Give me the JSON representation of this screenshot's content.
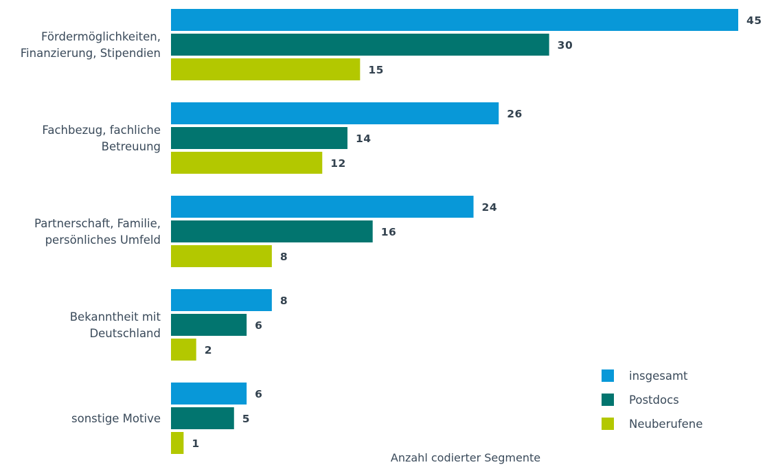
{
  "chart_data": {
    "type": "bar",
    "orientation": "horizontal",
    "categories": [
      [
        "Fördermöglichkeiten,",
        "Finanzierung, Stipendien"
      ],
      [
        "Fachbezug, fachliche",
        "Betreuung"
      ],
      [
        "Partnerschaft, Familie,",
        "persönliches Umfeld"
      ],
      [
        "Bekanntheit mit",
        "Deutschland"
      ],
      [
        "sonstige Motive"
      ]
    ],
    "series": [
      {
        "name": "insgesamt",
        "color": "#0898d8",
        "values": [
          45,
          26,
          24,
          8,
          6
        ]
      },
      {
        "name": "Postdocs",
        "color": "#02756f",
        "values": [
          30,
          14,
          16,
          6,
          5
        ]
      },
      {
        "name": "Neuberufene",
        "color": "#b3c800",
        "values": [
          15,
          12,
          8,
          2,
          1
        ]
      }
    ],
    "xlabel": "Anzahl codierter Segmente",
    "ylabel": "",
    "xlim": [
      0,
      45
    ],
    "grid": false,
    "legend_position": "bottom-right",
    "data_labels": true
  }
}
